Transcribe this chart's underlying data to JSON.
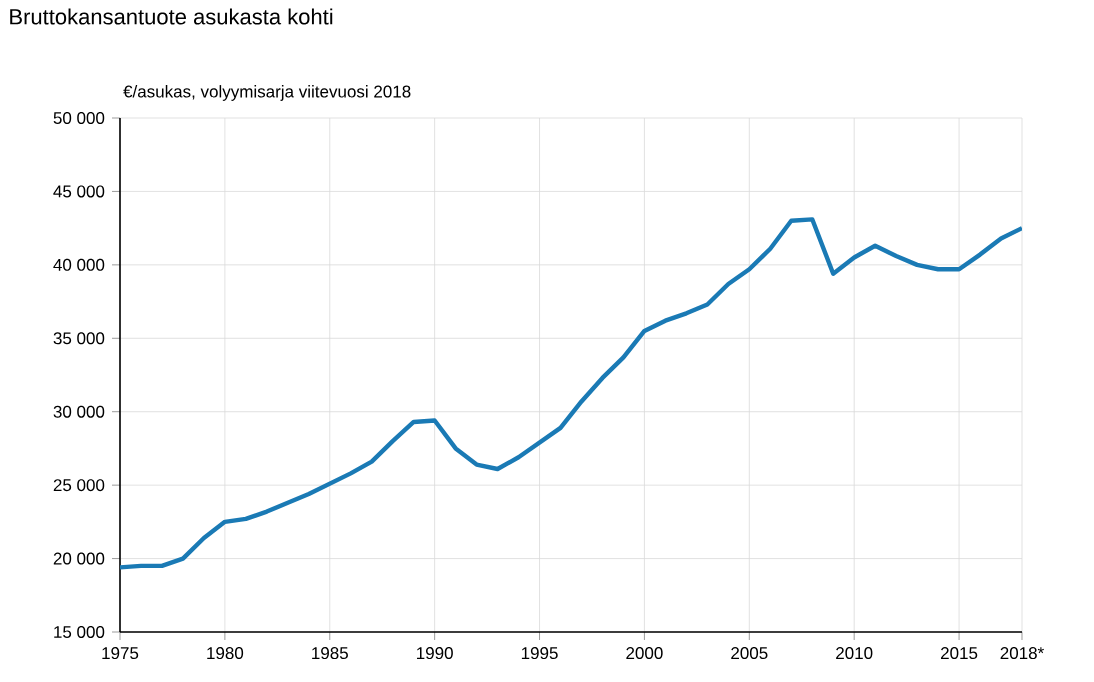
{
  "chart_data": {
    "type": "line",
    "title": "Bruttokansantuote asukasta kohti",
    "ylabel": "€/asukas, volyymisarja viitevuosi 2018",
    "x": [
      1975,
      1976,
      1977,
      1978,
      1979,
      1980,
      1981,
      1982,
      1983,
      1984,
      1985,
      1986,
      1987,
      1988,
      1989,
      1990,
      1991,
      1992,
      1993,
      1994,
      1995,
      1996,
      1997,
      1998,
      1999,
      2000,
      2001,
      2002,
      2003,
      2004,
      2005,
      2006,
      2007,
      2008,
      2009,
      2010,
      2011,
      2012,
      2013,
      2014,
      2015,
      2016,
      2017,
      2018
    ],
    "series": [
      {
        "color": "#1a7ab5",
        "values": [
          19400,
          19500,
          19500,
          20000,
          21400,
          22500,
          22700,
          23200,
          23800,
          24400,
          25100,
          25800,
          26600,
          28000,
          29300,
          29400,
          27500,
          26400,
          26100,
          26900,
          27900,
          28900,
          30700,
          32300,
          33700,
          35500,
          36200,
          36700,
          37300,
          38700,
          39700,
          41100,
          43000,
          43100,
          39400,
          40500,
          41300,
          40600,
          40000,
          39700,
          39700,
          40700,
          41800,
          42500
        ]
      }
    ],
    "xlim": [
      1975,
      2018
    ],
    "ylim": [
      15000,
      50000
    ],
    "xticks": [
      1975,
      1980,
      1985,
      1990,
      1995,
      2000,
      2005,
      2010,
      2015,
      {
        "value": 2018,
        "label": "2018*"
      }
    ],
    "yticks": [
      {
        "value": 15000,
        "label": "15 000"
      },
      {
        "value": 20000,
        "label": "20 000"
      },
      {
        "value": 25000,
        "label": "25 000"
      },
      {
        "value": 30000,
        "label": "30 000"
      },
      {
        "value": 35000,
        "label": "35 000"
      },
      {
        "value": 40000,
        "label": "40 000"
      },
      {
        "value": 45000,
        "label": "45 000"
      },
      {
        "value": 50000,
        "label": "50 000"
      }
    ],
    "grid": true,
    "marker": "none",
    "line_style": "solid"
  }
}
